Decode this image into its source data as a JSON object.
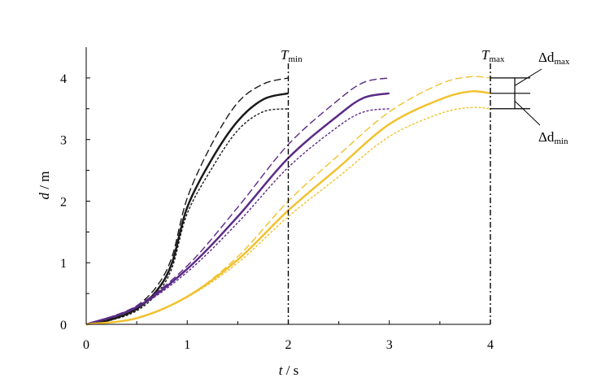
{
  "chart_data": {
    "type": "line",
    "xlabel": {
      "var": "t",
      "unit": "s"
    },
    "ylabel": {
      "var": "d",
      "unit": "m"
    },
    "xlim": [
      0,
      4
    ],
    "ylim": [
      0,
      4.5
    ],
    "x_ticks": [
      "0",
      "1",
      "2",
      "3",
      "4"
    ],
    "y_ticks": [
      "0",
      "1",
      "2",
      "3",
      "4"
    ],
    "grid": false,
    "legend": "none",
    "series": [
      {
        "color": "#1a1a1a",
        "style": "solid",
        "x": [
          0,
          0.25,
          0.5,
          0.7,
          0.85,
          1.0,
          1.25,
          1.5,
          1.75,
          2.0
        ],
        "y": [
          0,
          0.08,
          0.25,
          0.55,
          1.0,
          1.9,
          2.7,
          3.3,
          3.65,
          3.75
        ]
      },
      {
        "color": "#1a1a1a",
        "style": "dashed",
        "x": [
          0,
          0.25,
          0.5,
          0.7,
          0.85,
          1.0,
          1.25,
          1.5,
          1.75,
          2.0
        ],
        "y": [
          0,
          0.1,
          0.3,
          0.62,
          1.1,
          2.05,
          2.95,
          3.6,
          3.9,
          4.0
        ]
      },
      {
        "color": "#1a1a1a",
        "style": "dotted",
        "x": [
          0,
          0.25,
          0.5,
          0.7,
          0.85,
          1.0,
          1.25,
          1.5,
          1.75,
          2.0
        ],
        "y": [
          0,
          0.07,
          0.22,
          0.5,
          0.92,
          1.8,
          2.55,
          3.15,
          3.45,
          3.5
        ]
      },
      {
        "color": "#5b2a86",
        "style": "solid",
        "x": [
          0,
          0.5,
          1.0,
          1.5,
          2.0,
          2.5,
          2.75,
          3.0
        ],
        "y": [
          0,
          0.28,
          0.9,
          1.75,
          2.7,
          3.4,
          3.68,
          3.75
        ]
      },
      {
        "color": "#5b2a86",
        "style": "dashed",
        "x": [
          0,
          0.5,
          1.0,
          1.5,
          2.0,
          2.5,
          2.75,
          3.0
        ],
        "y": [
          0,
          0.3,
          0.95,
          1.9,
          2.92,
          3.65,
          3.93,
          4.0
        ]
      },
      {
        "color": "#5b2a86",
        "style": "dotted",
        "x": [
          0,
          0.5,
          1.0,
          1.5,
          2.0,
          2.5,
          2.75,
          3.0
        ],
        "y": [
          0,
          0.27,
          0.85,
          1.65,
          2.55,
          3.22,
          3.45,
          3.5
        ]
      },
      {
        "color": "#f2c12e",
        "style": "solid",
        "x": [
          0,
          0.5,
          1.0,
          1.5,
          2.0,
          2.5,
          3.0,
          3.5,
          3.8,
          4.0
        ],
        "y": [
          0,
          0.1,
          0.45,
          1.05,
          1.85,
          2.55,
          3.25,
          3.65,
          3.78,
          3.75
        ]
      },
      {
        "color": "#f2c12e",
        "style": "dashed",
        "x": [
          0,
          0.5,
          1.0,
          1.5,
          2.0,
          2.5,
          3.0,
          3.5,
          3.8,
          4.0
        ],
        "y": [
          0,
          0.1,
          0.45,
          1.1,
          2.0,
          2.75,
          3.45,
          3.9,
          4.02,
          4.0
        ]
      },
      {
        "color": "#f2c12e",
        "style": "dotted",
        "x": [
          0,
          0.5,
          1.0,
          1.5,
          2.0,
          2.5,
          3.0,
          3.5,
          3.8,
          4.0
        ],
        "y": [
          0,
          0.1,
          0.44,
          1.0,
          1.75,
          2.4,
          3.05,
          3.42,
          3.52,
          3.5
        ]
      }
    ],
    "vlines": [
      {
        "x": 2,
        "label": {
          "main": "T",
          "sub": "min"
        }
      },
      {
        "x": 4,
        "label": {
          "main": "T",
          "sub": "max"
        }
      }
    ],
    "bracket": {
      "y_top": 4.0,
      "y_mid": 3.75,
      "y_bottom": 3.5,
      "label_top": {
        "main": "Δd",
        "sub": "max"
      },
      "label_bottom": {
        "main": "Δd",
        "sub": "min"
      }
    }
  }
}
